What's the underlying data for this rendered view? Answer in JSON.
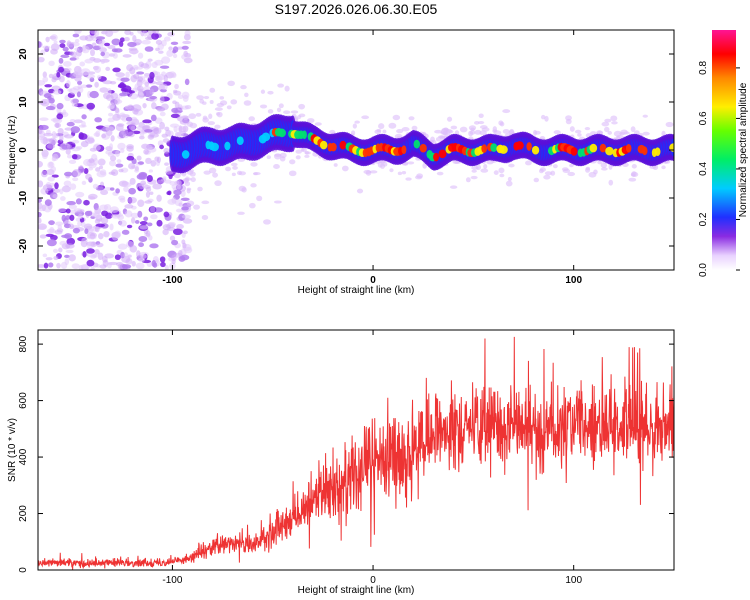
{
  "title": "S197.2026.026.06.30.E05",
  "chart_data": [
    {
      "type": "heatmap",
      "title": "S197.2026.026.06.30.E05",
      "xlabel": "Height of straight line (km)",
      "ylabel": "Frequency (Hz)",
      "xlim": [
        -167,
        150
      ],
      "ylim": [
        -25,
        25
      ],
      "xticks": [
        -100,
        0,
        100
      ],
      "yticks": [
        -20,
        -10,
        0,
        10,
        20
      ],
      "colorbar": {
        "label": "Normalized spectral amplitude",
        "range": [
          0.0,
          0.95
        ],
        "ticks": [
          0.0,
          0.2,
          0.4,
          0.6,
          0.8
        ]
      },
      "ridge": {
        "description_points_x": [
          -100,
          -90,
          -80,
          -70,
          -60,
          -50,
          -40,
          -30,
          -20,
          -10,
          0,
          10,
          20,
          30,
          40,
          50,
          60,
          70,
          80,
          90,
          100,
          110,
          120,
          130,
          140,
          150
        ],
        "description_points_y": [
          -1,
          0,
          1,
          1,
          2,
          3,
          4,
          2,
          1,
          0,
          0,
          0,
          1,
          -1,
          0,
          0,
          0,
          1,
          0,
          0,
          0,
          0,
          0,
          0,
          0,
          0
        ]
      }
    },
    {
      "type": "line",
      "xlabel": "Height of straight line (km)",
      "ylabel": "SNR (10 * v/v)",
      "xlim": [
        -167,
        150
      ],
      "ylim": [
        0,
        850
      ],
      "xticks": [
        -100,
        0,
        100
      ],
      "yticks": [
        0,
        200,
        400,
        600,
        800
      ],
      "series": [
        {
          "name": "SNR",
          "color": "#ee3333",
          "envelope_x": [
            -167,
            -110,
            -100,
            -90,
            -80,
            -70,
            -60,
            -50,
            -40,
            -30,
            -20,
            -10,
            0,
            10,
            20,
            30,
            40,
            50,
            60,
            70,
            80,
            90,
            100,
            110,
            120,
            130,
            140,
            150
          ],
          "envelope_y": [
            25,
            25,
            30,
            45,
            80,
            95,
            85,
            130,
            190,
            250,
            300,
            340,
            380,
            400,
            420,
            470,
            510,
            520,
            520,
            510,
            500,
            500,
            500,
            510,
            515,
            515,
            515,
            520
          ]
        }
      ]
    }
  ]
}
